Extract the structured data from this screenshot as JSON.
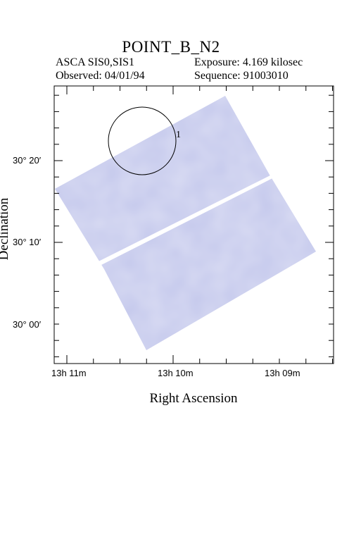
{
  "header": {
    "title": "POINT_B_N2",
    "instrument": "ASCA SIS0,SIS1",
    "observed_label": "Observed:",
    "observed_date": "04/01/94",
    "exposure_label": "Exposure:",
    "exposure_value": "4.169 kilosec",
    "sequence_label": "Sequence:",
    "sequence_value": "91003010"
  },
  "axes": {
    "xlabel": "Right Ascension",
    "ylabel": "Declination",
    "x_ticks": [
      "13h 11m",
      "13h 10m",
      "13h 09m"
    ],
    "y_ticks": [
      "30° 20′",
      "30° 10′",
      "30° 00′"
    ]
  },
  "map": {
    "source_marker": "1",
    "field_color": "#c4c8ec",
    "region_circle": "circle"
  }
}
